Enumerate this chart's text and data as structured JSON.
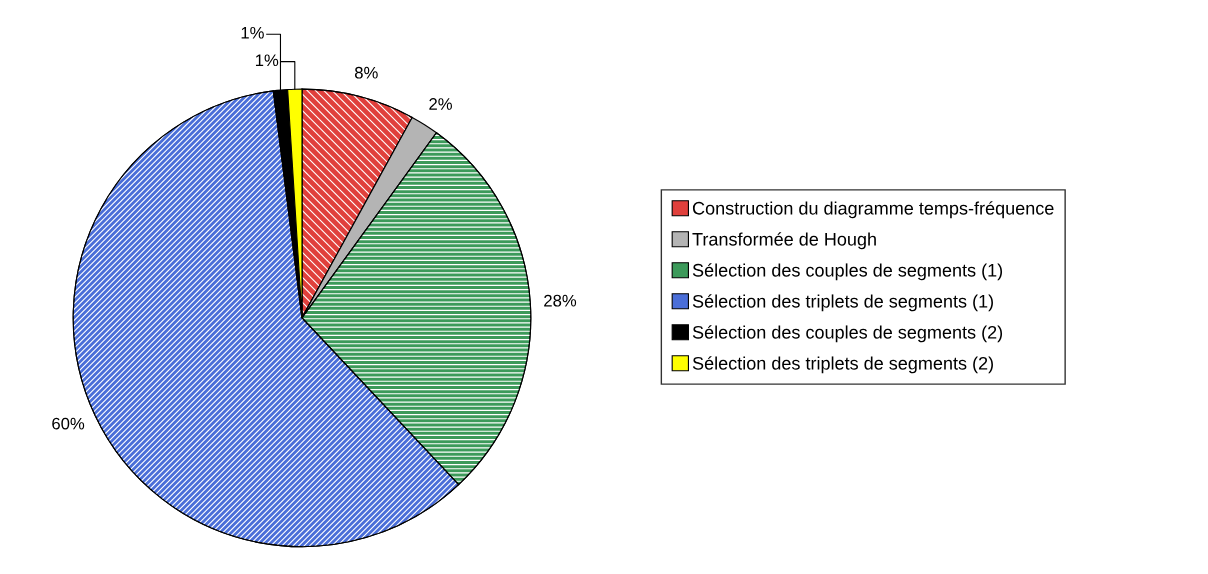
{
  "chart_data": {
    "type": "pie",
    "categories": [
      "Construction du diagramme temps-fréquence",
      "Transformée de Hough",
      "Sélection des couples de segments (1)",
      "Sélection des triplets de segments (1)",
      "Sélection des couples de segments (2)",
      "Sélection des triplets de segments (2)"
    ],
    "values": [
      8,
      2,
      28,
      60,
      1,
      1
    ],
    "value_labels": [
      "8%",
      "2%",
      "28%",
      "60%",
      "1%",
      "1%"
    ],
    "colors": [
      "#e0403c",
      "#b4b4b4",
      "#3c9a5a",
      "#4a6ed8",
      "#000000",
      "#ffff00"
    ],
    "legend": "right"
  }
}
